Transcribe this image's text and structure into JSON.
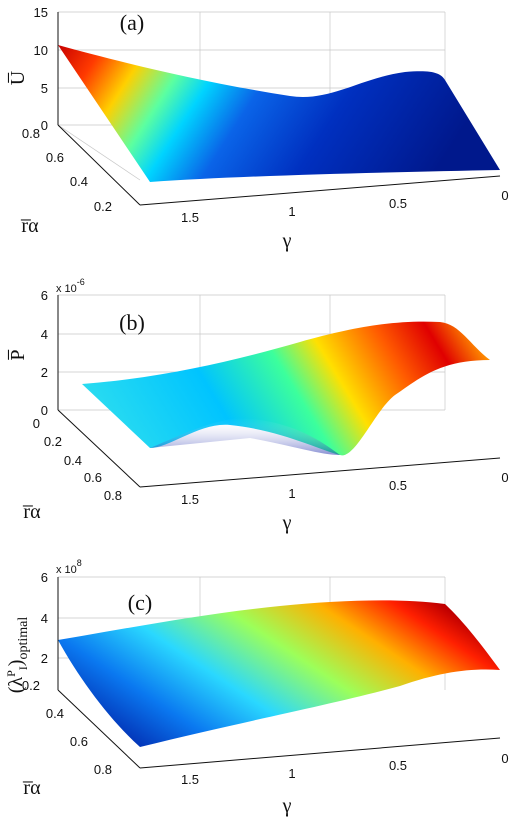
{
  "chart_data": [
    {
      "type": "surface",
      "panel_label": "(a)",
      "zlabel": "U̅",
      "xlabel": "γ",
      "ylabel": "r̅α",
      "exponent_label": "",
      "x_ticks": [
        "1.5",
        "1",
        "0.5",
        "0"
      ],
      "y_ticks": [
        "0.8",
        "0.6",
        "0.4",
        "0.2"
      ],
      "z_ticks": [
        "15",
        "10",
        "5",
        "0"
      ],
      "z_range": [
        0,
        15
      ],
      "colormap": "jet"
    },
    {
      "type": "surface",
      "panel_label": "(b)",
      "zlabel": "P̅",
      "xlabel": "γ",
      "ylabel": "r̅α",
      "exponent_label": "x 10",
      "exponent_power": "-6",
      "x_ticks": [
        "1.5",
        "1",
        "0.5",
        "0"
      ],
      "y_ticks": [
        "0",
        "0.2",
        "0.4",
        "0.6",
        "0.8"
      ],
      "z_ticks": [
        "6",
        "4",
        "2",
        "0"
      ],
      "z_range": [
        0,
        6
      ],
      "colormap": "jet"
    },
    {
      "type": "surface",
      "panel_label": "(c)",
      "zlabel": "(λ",
      "zlabel_sup": "P",
      "zlabel_sub": "I",
      "zlabel_end": ")",
      "zlabel_tail": "optimal",
      "xlabel": "γ",
      "ylabel": "r̅α",
      "exponent_label": "x 10",
      "exponent_power": "8",
      "x_ticks": [
        "1.5",
        "1",
        "0.5",
        "0"
      ],
      "y_ticks": [
        "0.2",
        "0.4",
        "0.6",
        "0.8"
      ],
      "z_ticks": [
        "6",
        "4",
        "2"
      ],
      "z_range": [
        0,
        6
      ],
      "colormap": "jet"
    }
  ]
}
